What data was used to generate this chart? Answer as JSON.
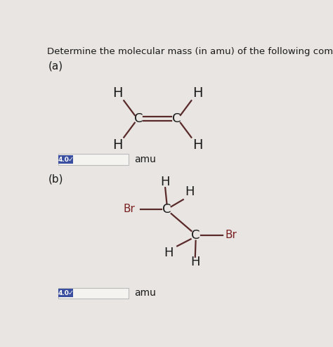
{
  "title": "Determine the molecular mass (in amu) of the following compounds.",
  "title_fontsize": 9.5,
  "bg_color": "#e8e5e2",
  "text_color": "#1a1a1a",
  "bond_color": "#5a2a2a",
  "atom_color": "#1a1a1a",
  "br_color": "#7a2020",
  "label_a": "(a)",
  "label_b": "(b)",
  "amu_text": "amu",
  "badge_text": "4.0",
  "badge_bg": "#3a4fa0",
  "badge_fg": "#ffffff",
  "input_box_color": "#f5f3f0",
  "input_box_border": "#bbbbbb",
  "checkmark": "✓"
}
